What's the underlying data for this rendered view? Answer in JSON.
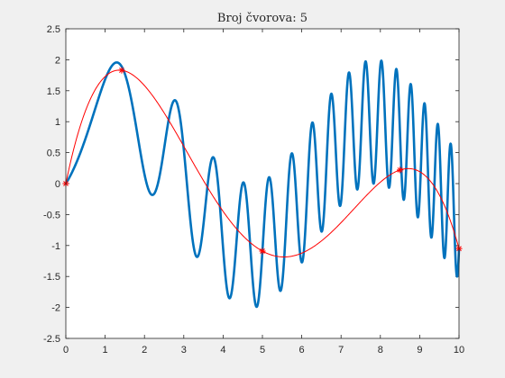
{
  "chart_data": {
    "type": "line",
    "title": "Broj čvorova: 5",
    "xlabel": "",
    "ylabel": "",
    "xlim": [
      0,
      10
    ],
    "ylim": [
      -2.5,
      2.5
    ],
    "grid": false,
    "x_ticks": [
      "0",
      "1",
      "2",
      "3",
      "4",
      "5",
      "6",
      "7",
      "8",
      "9",
      "10"
    ],
    "y_ticks": [
      "2.5",
      "2",
      "1.5",
      "1",
      "0.5",
      "0",
      "-0.5",
      "-1",
      "-1.5",
      "-2",
      "-2.5"
    ],
    "series": [
      {
        "function": "sin(x) + sin(x^2)",
        "x_range": [
          0,
          10
        ],
        "color": "#0072bd",
        "style": "thick line"
      },
      {
        "function": "interpolating polynomial through nodes",
        "color": "#ff0000",
        "style": "thin line"
      }
    ],
    "nodes": {
      "x": [
        0,
        1.42,
        5.0,
        8.5,
        10.0
      ],
      "y": [
        0,
        1.83,
        -1.09,
        0.22,
        -1.05
      ],
      "marker": "*",
      "color": "#ff0000"
    }
  }
}
